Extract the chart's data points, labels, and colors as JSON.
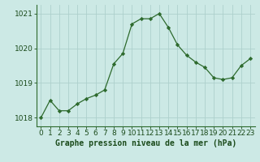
{
  "x": [
    0,
    1,
    2,
    3,
    4,
    5,
    6,
    7,
    8,
    9,
    10,
    11,
    12,
    13,
    14,
    15,
    16,
    17,
    18,
    19,
    20,
    21,
    22,
    23
  ],
  "y": [
    1018.0,
    1018.5,
    1018.2,
    1018.2,
    1018.4,
    1018.55,
    1018.65,
    1018.8,
    1019.55,
    1019.85,
    1020.7,
    1020.85,
    1020.85,
    1021.0,
    1020.6,
    1020.1,
    1019.8,
    1019.6,
    1019.45,
    1019.15,
    1019.1,
    1019.15,
    1019.5,
    1019.7
  ],
  "line_color": "#2d6a2d",
  "marker": "D",
  "marker_size": 2.2,
  "bg_color": "#cce9e5",
  "grid_color": "#aed0cc",
  "ylim": [
    1017.75,
    1021.25
  ],
  "yticks": [
    1018,
    1019,
    1020,
    1021
  ],
  "xlabel": "Graphe pression niveau de la mer (hPa)",
  "xlabel_fontsize": 7,
  "tick_fontsize": 6.5,
  "axis_color": "#2d6a2d",
  "label_color": "#1a4a1a"
}
